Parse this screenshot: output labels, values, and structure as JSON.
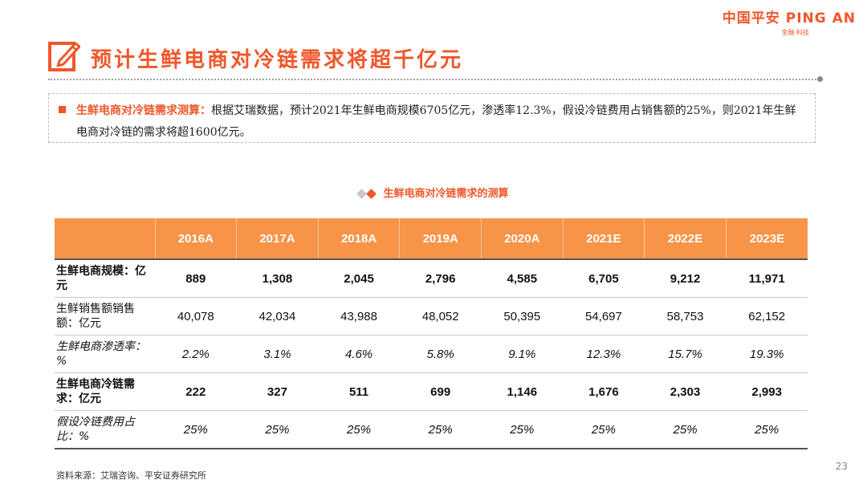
{
  "logo": {
    "brand": "中国平安 PING AN",
    "tagline": "金融·科技"
  },
  "page_title": "预计生鲜电商对冷链需求将超千亿元",
  "summary": {
    "lead": "生鲜电商对冷链需求测算：",
    "text": "根据艾瑞数据，预计2021年生鲜电商规模6705亿元，渗透率12.3%，假设冷链费用占销售额的25%，则2021年生鲜电商对冷链的需求将超1600亿元。"
  },
  "table": {
    "caption": "生鲜电商对冷链需求的测算",
    "columns": [
      "2016A",
      "2017A",
      "2018A",
      "2019A",
      "2020A",
      "2021E",
      "2022E",
      "2023E"
    ],
    "rows": [
      {
        "label": "生鲜电商规模：亿元",
        "values": [
          "889",
          "1,308",
          "2,045",
          "2,796",
          "4,585",
          "6,705",
          "9,212",
          "11,971"
        ]
      },
      {
        "label": "生鲜销售额销售额：亿元",
        "values": [
          "40,078",
          "42,034",
          "43,988",
          "48,052",
          "50,395",
          "54,697",
          "58,753",
          "62,152"
        ]
      },
      {
        "label": "生鲜电商渗透率：%",
        "values": [
          "2.2%",
          "3.1%",
          "4.6%",
          "5.8%",
          "9.1%",
          "12.3%",
          "15.7%",
          "19.3%"
        ]
      },
      {
        "label": "生鲜电商冷链需求：亿元",
        "values": [
          "222",
          "327",
          "511",
          "699",
          "1,146",
          "1,676",
          "2,303",
          "2,993"
        ]
      },
      {
        "label": "假设冷链费用占比：%",
        "values": [
          "25%",
          "25%",
          "25%",
          "25%",
          "25%",
          "25%",
          "25%",
          "25%"
        ]
      }
    ]
  },
  "source": "资料来源：艾瑞咨询、平安证券研究所",
  "page_number": "23",
  "colors": {
    "accent": "#f0572a",
    "header_fill": "#f79447"
  }
}
